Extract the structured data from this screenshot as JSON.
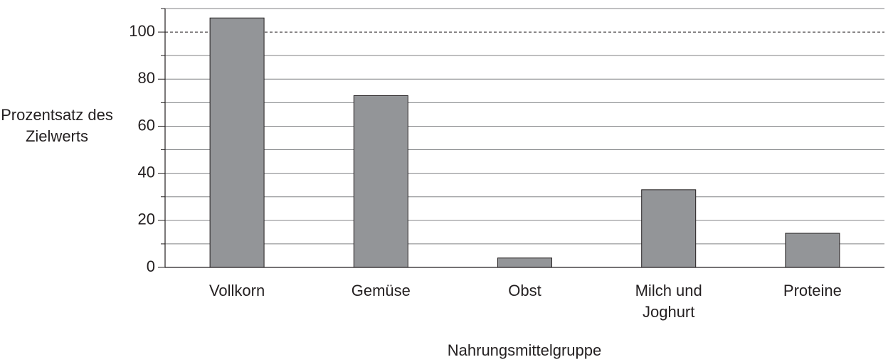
{
  "chart_data": {
    "type": "bar",
    "categories": [
      "Vollkorn",
      "Gemüse",
      "Obst",
      "Milch und Joghurt",
      "Proteine"
    ],
    "values": [
      106,
      73,
      4,
      33,
      14.5
    ],
    "color": "#939598",
    "xlabel": "Nahrungsmittelgruppe",
    "ylabel": "Prozentsatz des Zielwerts",
    "ylim": [
      0,
      110
    ],
    "yticks": [
      0,
      20,
      40,
      60,
      80,
      100
    ],
    "minor_yticks": [
      10,
      30,
      50,
      70,
      90,
      110
    ],
    "reference_line": 100,
    "grid": true
  }
}
